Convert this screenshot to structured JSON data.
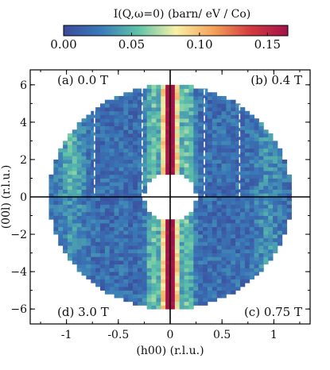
{
  "chart_data": {
    "type": "heatmap",
    "colorbar": {
      "title": "I(Q,ω=0) (barn/ eV / Co)",
      "ticks": [
        "0.00",
        "0.05",
        "0.10",
        "0.15"
      ],
      "tick_values": [
        0.0,
        0.05,
        0.1,
        0.15
      ],
      "range": [
        0.0,
        0.165
      ],
      "colors": [
        "#3b4a9c",
        "#3a7ab8",
        "#5ec3a8",
        "#f7f1a8",
        "#f4a25a",
        "#d33a3f",
        "#a3134a"
      ]
    },
    "xlabel": "(h00) (r.l.u.)",
    "ylabel": "(00l) (r.l.u.)",
    "xlim": [
      -1.35,
      1.35
    ],
    "ylim": [
      -6.8,
      6.8
    ],
    "x_ticks": [
      -1,
      -0.5,
      0,
      0.5,
      1
    ],
    "x_tick_labels": [
      "-1",
      "-0.5",
      "0",
      "0.5",
      "1"
    ],
    "y_ticks": [
      -6,
      -4,
      -2,
      0,
      2,
      4,
      6
    ],
    "y_tick_labels": [
      "−6",
      "−4",
      "−2",
      "0",
      "2",
      "4",
      "6"
    ],
    "panels": [
      {
        "label": "(a) 0.0 T",
        "quadrant": "top-left"
      },
      {
        "label": "(b) 0.4 T",
        "quadrant": "top-right"
      },
      {
        "label": "(c) 0.75 T",
        "quadrant": "bottom-right"
      },
      {
        "label": "(d) 3.0 T",
        "quadrant": "bottom-left"
      }
    ],
    "dashed_lines_h": [
      -0.73,
      -0.27,
      0.33,
      0.67
    ],
    "ring": {
      "outer_h": 1.17,
      "outer_l": 6.0,
      "inner_h": 0.25,
      "inner_l": 1.28
    },
    "intensity_model": {
      "background": 0.02,
      "rod_center_h": 0.0,
      "rod_peak": 0.17,
      "rod_half_width_h": 0.07
    }
  }
}
